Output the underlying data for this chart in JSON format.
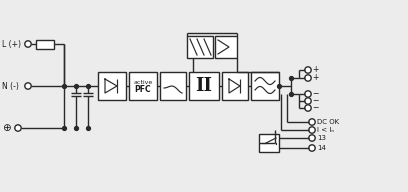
{
  "bg_color": "#ececec",
  "line_color": "#2a2a2a",
  "box_color": "#ffffff",
  "box_edge": "#2a2a2a",
  "text_color": "#1a1a1a",
  "figsize": [
    4.08,
    1.92
  ],
  "dpi": 100,
  "labels": {
    "L": "L (+)",
    "N": "N (-)",
    "active_pfc_1": "active",
    "active_pfc_2": "PFC",
    "dc_ok": "DC OK",
    "i_in": "I < Iₙ",
    "conn13": "13",
    "conn14": "14"
  }
}
